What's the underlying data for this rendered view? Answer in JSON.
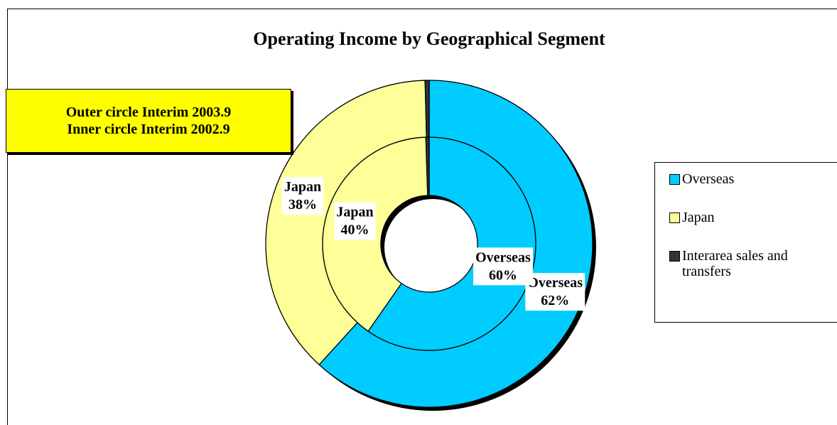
{
  "chart_data": {
    "type": "doughnut",
    "title": "Operating Income by Geographical Segment",
    "categories": [
      "Overseas",
      "Japan",
      "Interarea sales and transfers"
    ],
    "colors": [
      "#00ccff",
      "#ffff99",
      "#333333"
    ],
    "series": [
      {
        "name": "Outer circle Interim 2003.9",
        "values": [
          62,
          38,
          0.4
        ],
        "value_labels": [
          "62%",
          "38%",
          null
        ]
      },
      {
        "name": "Inner circle Interim 2002.9",
        "values": [
          60,
          40,
          0.5
        ],
        "value_labels": [
          "60%",
          "40%",
          null
        ]
      }
    ]
  }
}
